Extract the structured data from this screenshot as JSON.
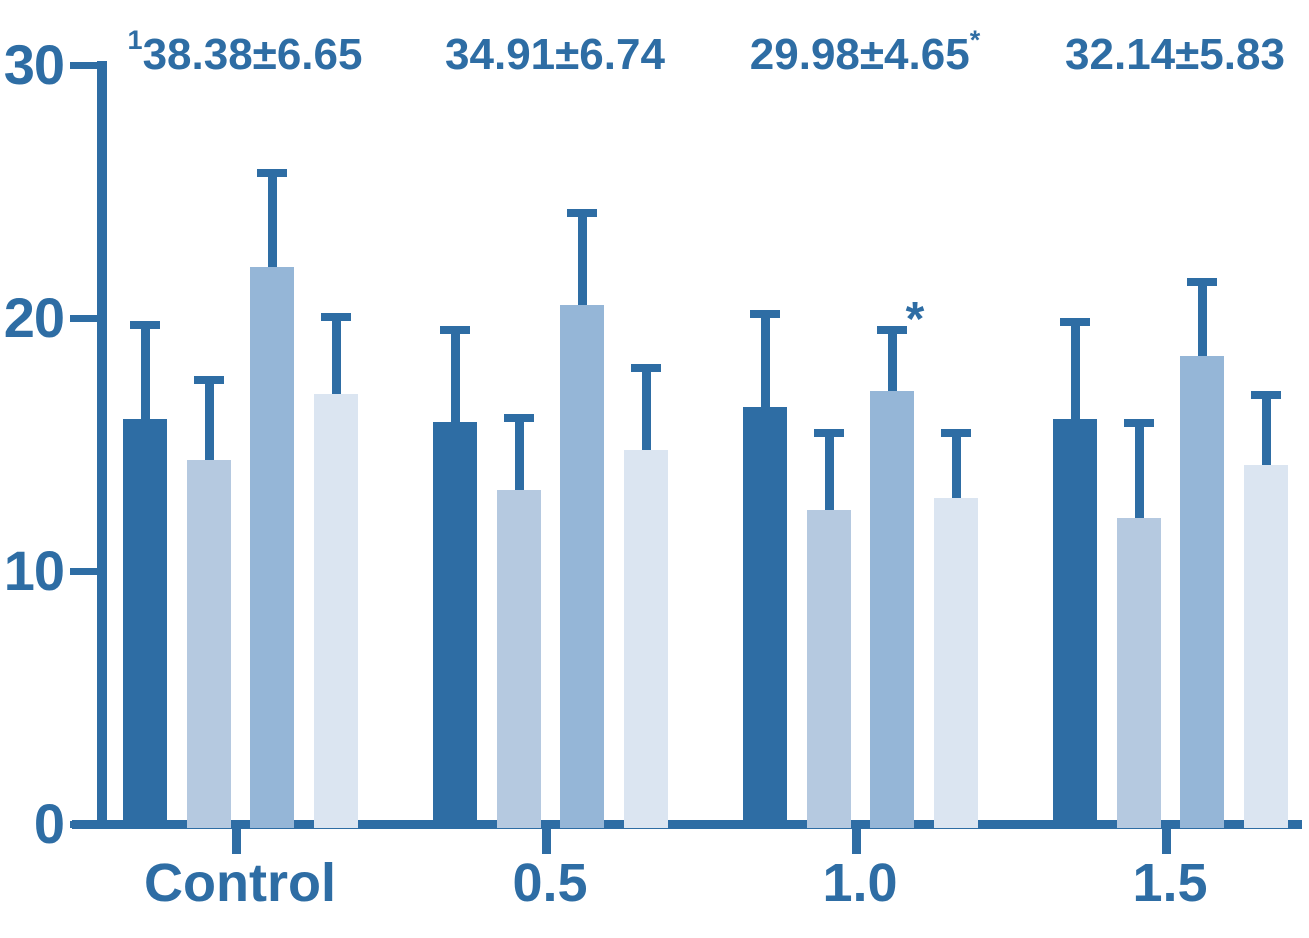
{
  "chart_data": {
    "type": "bar",
    "title": "",
    "xlabel": "",
    "ylabel": "",
    "categories": [
      "Control",
      "0.5",
      "1.0",
      "1.5"
    ],
    "series": [
      {
        "name": "series-1-dark-blue",
        "color": "#2e6da4",
        "values": [
          16.0,
          15.9,
          16.5,
          16.0
        ],
        "errors": [
          3.9,
          3.8,
          3.8,
          4.0
        ]
      },
      {
        "name": "series-2-light-blue",
        "color": "#b5c9e0",
        "values": [
          14.4,
          13.2,
          12.4,
          12.1
        ],
        "errors": [
          3.3,
          3.0,
          3.2,
          3.9
        ]
      },
      {
        "name": "series-3-medium-blue",
        "color": "#95b6d7",
        "values": [
          22.0,
          20.5,
          17.1,
          18.5
        ],
        "errors": [
          3.9,
          3.8,
          2.6,
          3.1
        ]
      },
      {
        "name": "series-4-pale-blue",
        "color": "#dbe5f1",
        "values": [
          17.0,
          14.8,
          12.9,
          14.2
        ],
        "errors": [
          3.2,
          3.4,
          2.7,
          2.9
        ]
      }
    ],
    "error_bars": "upper-only",
    "y_axis": {
      "ticks": [
        0,
        10,
        20,
        30
      ],
      "range": [
        0,
        30
      ]
    },
    "group_annotations": [
      {
        "sup_before": "1",
        "text": "38.38±6.65",
        "sup_after": ""
      },
      {
        "sup_before": "",
        "text": "34.91±6.74",
        "sup_after": ""
      },
      {
        "sup_before": "",
        "text": "29.98±4.65",
        "sup_after": "*"
      },
      {
        "sup_before": "",
        "text": "32.14±5.83",
        "sup_after": ""
      }
    ],
    "point_annotations": [
      {
        "text": "*",
        "category": "1.0",
        "group_index": 2
      }
    ],
    "legend": "none",
    "grid": false,
    "axis_color": "#2e6da4",
    "text_color": "#2e6da4",
    "background_color": "#ffffff"
  }
}
